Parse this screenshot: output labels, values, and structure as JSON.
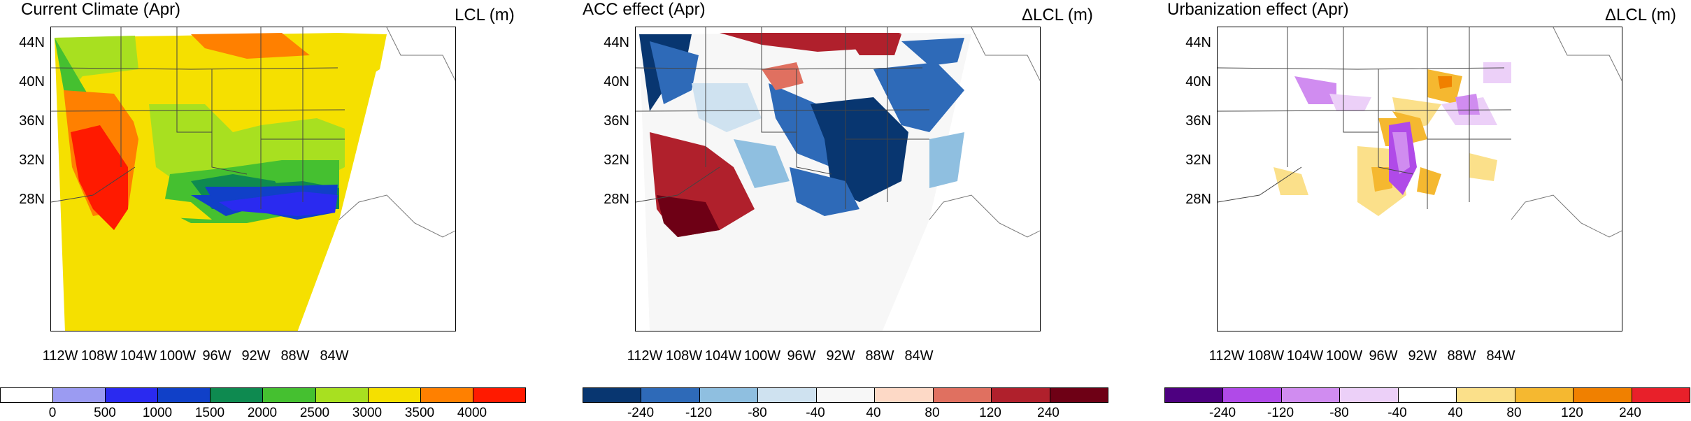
{
  "panels": [
    {
      "title": "Current Climate (Apr)",
      "unit": "LCL (m)",
      "colors": [
        "#ffffff",
        "#9b9bf2",
        "#2a2af0",
        "#1040c8",
        "#0e8a50",
        "#45c030",
        "#a8e020",
        "#f5e000",
        "#ff8000",
        "#ff1a00"
      ],
      "colorbar_labels": [
        "0",
        "500",
        "1000",
        "1500",
        "2000",
        "2500",
        "3000",
        "3500",
        "4000"
      ]
    },
    {
      "title": "ACC effect (Apr)",
      "unit": "ΔLCL (m)",
      "colors": [
        "#083670",
        "#2e6ab8",
        "#8fbfe0",
        "#cfe2f0",
        "#f7f7f7",
        "#fdd9c6",
        "#e07060",
        "#b0202c",
        "#6e0015"
      ],
      "colorbar_labels": [
        "-240",
        "-120",
        "-80",
        "-40",
        "40",
        "80",
        "120",
        "240"
      ]
    },
    {
      "title": "Urbanization effect (Apr)",
      "unit": "ΔLCL (m)",
      "colors": [
        "#4d0080",
        "#b04ae8",
        "#d08cf0",
        "#ecd0f8",
        "#ffffff",
        "#fbe08a",
        "#f5b830",
        "#f08000",
        "#e8202a"
      ],
      "colorbar_labels": [
        "-240",
        "-120",
        "-80",
        "-40",
        "40",
        "80",
        "120",
        "240"
      ]
    }
  ],
  "axes": {
    "lat_labels": [
      "44N",
      "40N",
      "36N",
      "32N",
      "28N"
    ],
    "lon_labels": [
      "112W",
      "108W",
      "104W",
      "100W",
      "96W",
      "92W",
      "88W",
      "84W"
    ]
  }
}
